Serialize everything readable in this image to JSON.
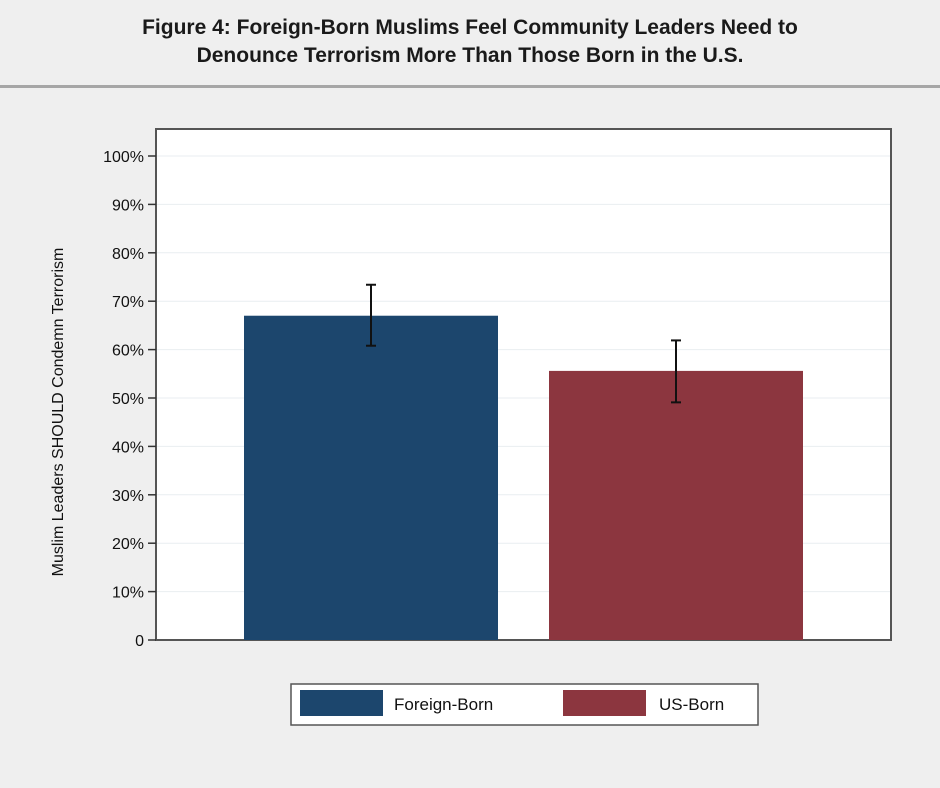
{
  "header": {
    "title_line1": "Figure 4: Foreign-Born Muslims Feel Community Leaders Need to",
    "title_line2": "Denounce Terrorism More Than Those Born in the U.S."
  },
  "chart_data": {
    "type": "bar",
    "title": "Figure 4: Foreign-Born Muslims Feel Community Leaders Need to Denounce Terrorism More Than Those Born in the U.S.",
    "ylabel": "Muslim Leaders SHOULD Condemn Terrorism",
    "xlabel": "",
    "ylim": [
      0,
      100
    ],
    "yticks": [
      0,
      10,
      20,
      30,
      40,
      50,
      60,
      70,
      80,
      90,
      100
    ],
    "ytick_labels": [
      "0",
      "10%",
      "20%",
      "30%",
      "40%",
      "50%",
      "60%",
      "70%",
      "80%",
      "90%",
      "100%"
    ],
    "grid": true,
    "legend_position": "bottom",
    "categories": [
      "Foreign-Born",
      "US-Born"
    ],
    "series": [
      {
        "name": "Foreign-Born",
        "value": 67,
        "error_low": 60.8,
        "error_high": 73.4,
        "color": "#1c466d"
      },
      {
        "name": "US-Born",
        "value": 55.6,
        "error_low": 49.1,
        "error_high": 61.9,
        "color": "#8c363f"
      }
    ]
  }
}
